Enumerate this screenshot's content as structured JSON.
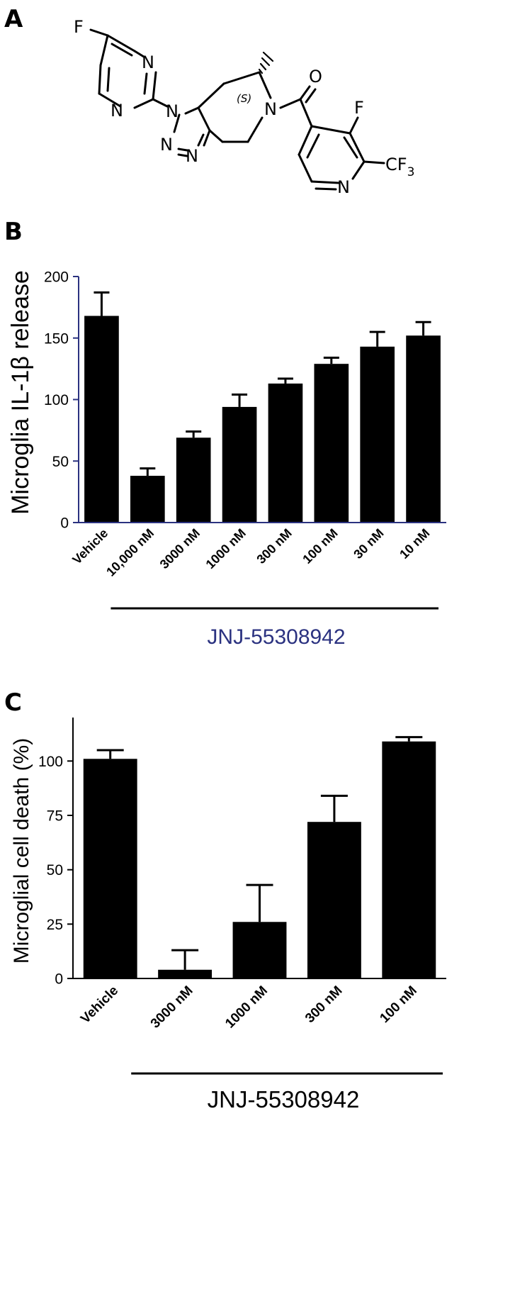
{
  "panel_a": {
    "letter": "A",
    "atoms": {
      "f_pyrimidine": "F",
      "n_pyr_top": "N",
      "n_pyr_bottom": "N",
      "n1": "N",
      "n2": "N",
      "n3": "N",
      "n_ring": "N",
      "stereo": "(S)",
      "o": "O",
      "f_pyridine": "F",
      "cf3_main": "CF",
      "cf3_sub": "3",
      "n_pyridine": "N"
    }
  },
  "chart_data": [
    {
      "panel": "B",
      "type": "bar",
      "ylabel": "Microglia IL-1β release",
      "ylim": [
        0,
        200
      ],
      "yticks": [
        0,
        50,
        100,
        150,
        200
      ],
      "categories": [
        "Vehicle",
        "10,000 nM",
        "3000 nM",
        "1000 nM",
        "300 nM",
        "100 nM",
        "30 nM",
        "10 nM"
      ],
      "values": [
        168,
        38,
        69,
        94,
        113,
        129,
        143,
        152
      ],
      "errors": [
        19,
        6,
        5,
        10,
        4,
        5,
        12,
        11
      ],
      "group_label": "JNJ-55308942",
      "colors": {
        "bar": "#000000",
        "axis": "#2b3280",
        "group_label": "#2b3280"
      }
    },
    {
      "panel": "C",
      "type": "bar",
      "ylabel": "Microglial cell death (%)",
      "ylim": [
        0,
        120
      ],
      "yticks": [
        0,
        25,
        50,
        75,
        100
      ],
      "categories": [
        "Vehicle",
        "3000 nM",
        "1000 nM",
        "300 nM",
        "100 nM"
      ],
      "values": [
        101,
        4,
        26,
        72,
        109
      ],
      "errors": [
        4,
        9,
        17,
        12,
        2
      ],
      "group_label": "JNJ-55308942",
      "colors": {
        "bar": "#000000",
        "axis": "#000000",
        "group_label": "#000000"
      }
    }
  ]
}
